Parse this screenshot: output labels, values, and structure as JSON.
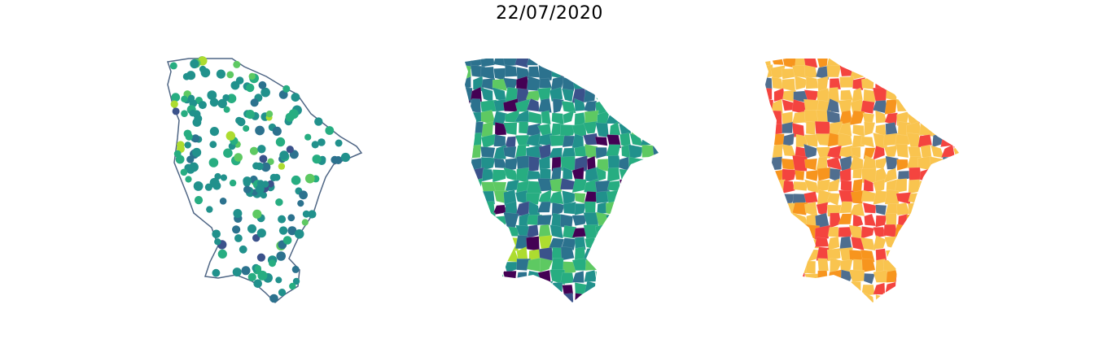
{
  "title": "22/07/2020",
  "colors": {
    "outline": "#4f6685",
    "viridis": [
      "#440154",
      "#3b528b",
      "#2c728e",
      "#21918c",
      "#27ad81",
      "#5ec962",
      "#addc30",
      "#fde725"
    ],
    "risk": [
      "#f9c44f",
      "#f7951e",
      "#f4443f",
      "#4f6e8f"
    ]
  },
  "panels": [
    {
      "name": "points-map",
      "style": "scatter of stations colored by viridis scale"
    },
    {
      "name": "choropleth-viridis-map",
      "style": "municipalities colored by viridis scale"
    },
    {
      "name": "choropleth-risk-map",
      "style": "municipalities colored by four risk classes"
    }
  ]
}
